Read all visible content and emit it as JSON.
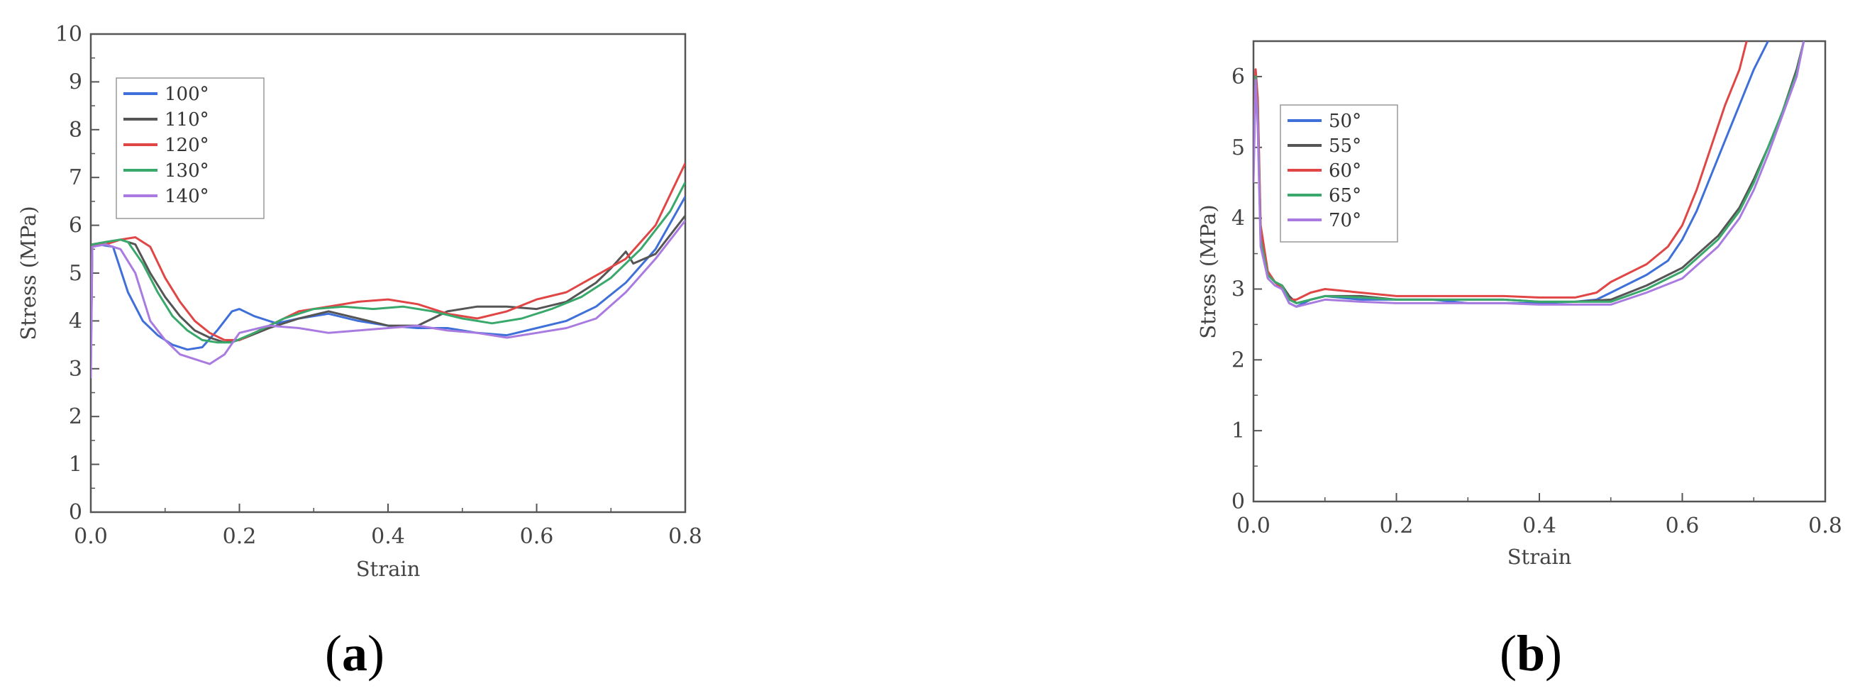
{
  "chart_data": [
    {
      "type": "line",
      "panel_label": "(a)",
      "xlabel": "Strain",
      "ylabel": "Stress (MPa)",
      "xlim": [
        0,
        0.8
      ],
      "ylim": [
        0,
        10
      ],
      "xticks": [
        "0.0",
        "0.2",
        "0.4",
        "0.6",
        "0.8"
      ],
      "yticks": [
        "0",
        "1",
        "2",
        "3",
        "4",
        "5",
        "6",
        "7",
        "8",
        "9",
        "10"
      ],
      "grid": false,
      "legend_position": "upper-left",
      "series": [
        {
          "name": "100°",
          "color": "#3f6fd8",
          "x": [
            0,
            0.002,
            0.01,
            0.03,
            0.05,
            0.07,
            0.09,
            0.11,
            0.13,
            0.15,
            0.17,
            0.19,
            0.2,
            0.22,
            0.25,
            0.28,
            0.32,
            0.36,
            0.4,
            0.44,
            0.48,
            0.52,
            0.56,
            0.6,
            0.64,
            0.68,
            0.72,
            0.76,
            0.8
          ],
          "y": [
            3.2,
            5.6,
            5.6,
            5.55,
            4.6,
            4.0,
            3.7,
            3.5,
            3.4,
            3.45,
            3.8,
            4.2,
            4.25,
            4.1,
            3.95,
            4.05,
            4.15,
            4.0,
            3.9,
            3.85,
            3.85,
            3.75,
            3.7,
            3.85,
            4.0,
            4.3,
            4.8,
            5.5,
            6.6
          ]
        },
        {
          "name": "110°",
          "color": "#555555",
          "x": [
            0,
            0.002,
            0.02,
            0.04,
            0.06,
            0.08,
            0.1,
            0.12,
            0.14,
            0.16,
            0.18,
            0.2,
            0.24,
            0.28,
            0.32,
            0.36,
            0.4,
            0.44,
            0.48,
            0.52,
            0.56,
            0.6,
            0.64,
            0.68,
            0.7,
            0.72,
            0.73,
            0.76,
            0.8
          ],
          "y": [
            3.5,
            5.6,
            5.65,
            5.7,
            5.6,
            5.0,
            4.5,
            4.1,
            3.8,
            3.65,
            3.55,
            3.6,
            3.85,
            4.05,
            4.2,
            4.05,
            3.9,
            3.9,
            4.2,
            4.3,
            4.3,
            4.25,
            4.4,
            4.8,
            5.1,
            5.45,
            5.2,
            5.4,
            6.2
          ]
        },
        {
          "name": "120°",
          "color": "#e04646",
          "x": [
            0,
            0.002,
            0.02,
            0.04,
            0.06,
            0.08,
            0.1,
            0.12,
            0.14,
            0.16,
            0.18,
            0.2,
            0.24,
            0.28,
            0.32,
            0.36,
            0.4,
            0.44,
            0.48,
            0.52,
            0.56,
            0.6,
            0.64,
            0.68,
            0.72,
            0.76,
            0.8
          ],
          "y": [
            3.5,
            5.6,
            5.6,
            5.7,
            5.75,
            5.55,
            4.9,
            4.4,
            4.0,
            3.75,
            3.6,
            3.6,
            3.9,
            4.2,
            4.3,
            4.4,
            4.45,
            4.35,
            4.15,
            4.05,
            4.2,
            4.45,
            4.6,
            4.95,
            5.3,
            6.0,
            7.3
          ]
        },
        {
          "name": "130°",
          "color": "#39a86b",
          "x": [
            0,
            0.002,
            0.02,
            0.04,
            0.05,
            0.07,
            0.09,
            0.11,
            0.13,
            0.15,
            0.17,
            0.19,
            0.22,
            0.26,
            0.3,
            0.34,
            0.38,
            0.42,
            0.46,
            0.5,
            0.54,
            0.58,
            0.62,
            0.66,
            0.7,
            0.74,
            0.78,
            0.8
          ],
          "y": [
            3.0,
            5.6,
            5.65,
            5.7,
            5.65,
            5.2,
            4.6,
            4.1,
            3.8,
            3.6,
            3.55,
            3.55,
            3.75,
            4.05,
            4.25,
            4.3,
            4.25,
            4.3,
            4.2,
            4.05,
            3.95,
            4.05,
            4.25,
            4.5,
            4.9,
            5.5,
            6.3,
            6.9
          ]
        },
        {
          "name": "140°",
          "color": "#a97be0",
          "x": [
            0,
            0.002,
            0.02,
            0.04,
            0.06,
            0.08,
            0.1,
            0.12,
            0.14,
            0.16,
            0.18,
            0.2,
            0.24,
            0.28,
            0.32,
            0.36,
            0.4,
            0.44,
            0.48,
            0.52,
            0.56,
            0.6,
            0.64,
            0.68,
            0.72,
            0.76,
            0.8
          ],
          "y": [
            2.8,
            5.55,
            5.6,
            5.5,
            5.0,
            4.0,
            3.6,
            3.3,
            3.2,
            3.1,
            3.3,
            3.75,
            3.9,
            3.85,
            3.75,
            3.8,
            3.85,
            3.9,
            3.8,
            3.75,
            3.65,
            3.75,
            3.85,
            4.05,
            4.6,
            5.3,
            6.1
          ]
        }
      ]
    },
    {
      "type": "line",
      "panel_label": "(b)",
      "xlabel": "Strain",
      "ylabel": "Stress (MPa)",
      "xlim": [
        0,
        0.8
      ],
      "ylim": [
        0,
        6.5
      ],
      "xticks": [
        "0.0",
        "0.2",
        "0.4",
        "0.6",
        "0.8"
      ],
      "yticks": [
        "0",
        "1",
        "2",
        "3",
        "4",
        "5",
        "6"
      ],
      "grid": false,
      "legend_position": "upper-left",
      "series": [
        {
          "name": "50°",
          "color": "#3f6fd8",
          "x": [
            0,
            0.003,
            0.006,
            0.01,
            0.02,
            0.03,
            0.04,
            0.05,
            0.06,
            0.08,
            0.1,
            0.15,
            0.2,
            0.25,
            0.3,
            0.35,
            0.4,
            0.45,
            0.48,
            0.5,
            0.52,
            0.55,
            0.58,
            0.6,
            0.62,
            0.64,
            0.66,
            0.68,
            0.7,
            0.72
          ],
          "y": [
            4.8,
            6.1,
            5.6,
            3.8,
            3.2,
            3.1,
            3.0,
            2.8,
            2.75,
            2.85,
            2.9,
            2.85,
            2.85,
            2.85,
            2.8,
            2.8,
            2.8,
            2.82,
            2.85,
            2.95,
            3.05,
            3.2,
            3.4,
            3.7,
            4.1,
            4.6,
            5.1,
            5.6,
            6.1,
            6.5
          ]
        },
        {
          "name": "55°",
          "color": "#555555",
          "x": [
            0,
            0.003,
            0.006,
            0.01,
            0.02,
            0.03,
            0.04,
            0.05,
            0.06,
            0.08,
            0.1,
            0.15,
            0.2,
            0.25,
            0.3,
            0.35,
            0.4,
            0.45,
            0.5,
            0.55,
            0.6,
            0.65,
            0.68,
            0.7,
            0.72,
            0.74,
            0.76,
            0.77
          ],
          "y": [
            4.7,
            6.05,
            5.5,
            3.7,
            3.2,
            3.1,
            3.05,
            2.9,
            2.8,
            2.85,
            2.9,
            2.9,
            2.85,
            2.85,
            2.85,
            2.85,
            2.82,
            2.82,
            2.85,
            3.05,
            3.3,
            3.75,
            4.15,
            4.55,
            5.0,
            5.5,
            6.1,
            6.5
          ]
        },
        {
          "name": "60°",
          "color": "#e04646",
          "x": [
            0,
            0.003,
            0.006,
            0.01,
            0.02,
            0.03,
            0.04,
            0.05,
            0.06,
            0.08,
            0.1,
            0.15,
            0.2,
            0.25,
            0.3,
            0.35,
            0.4,
            0.45,
            0.48,
            0.5,
            0.52,
            0.55,
            0.58,
            0.6,
            0.62,
            0.64,
            0.66,
            0.68,
            0.69
          ],
          "y": [
            4.9,
            6.1,
            5.7,
            3.9,
            3.25,
            3.1,
            3.0,
            2.85,
            2.85,
            2.95,
            3.0,
            2.95,
            2.9,
            2.9,
            2.9,
            2.9,
            2.88,
            2.88,
            2.95,
            3.1,
            3.2,
            3.35,
            3.6,
            3.9,
            4.4,
            5.0,
            5.6,
            6.1,
            6.5
          ]
        },
        {
          "name": "65°",
          "color": "#39a86b",
          "x": [
            0,
            0.003,
            0.006,
            0.01,
            0.02,
            0.03,
            0.04,
            0.05,
            0.06,
            0.08,
            0.1,
            0.15,
            0.2,
            0.25,
            0.3,
            0.35,
            0.4,
            0.45,
            0.5,
            0.55,
            0.6,
            0.65,
            0.68,
            0.7,
            0.72,
            0.74,
            0.76,
            0.77
          ],
          "y": [
            4.6,
            6.0,
            5.4,
            3.7,
            3.2,
            3.1,
            3.05,
            2.85,
            2.8,
            2.85,
            2.9,
            2.88,
            2.85,
            2.85,
            2.85,
            2.85,
            2.82,
            2.82,
            2.82,
            3.0,
            3.25,
            3.7,
            4.1,
            4.5,
            5.0,
            5.5,
            6.05,
            6.5
          ]
        },
        {
          "name": "70°",
          "color": "#a97be0",
          "x": [
            0,
            0.003,
            0.006,
            0.01,
            0.02,
            0.03,
            0.04,
            0.05,
            0.06,
            0.08,
            0.1,
            0.15,
            0.2,
            0.25,
            0.3,
            0.35,
            0.4,
            0.45,
            0.5,
            0.55,
            0.6,
            0.65,
            0.68,
            0.7,
            0.72,
            0.74,
            0.76,
            0.77
          ],
          "y": [
            4.5,
            5.95,
            5.3,
            3.6,
            3.15,
            3.05,
            3.0,
            2.8,
            2.75,
            2.8,
            2.85,
            2.82,
            2.8,
            2.8,
            2.8,
            2.8,
            2.78,
            2.78,
            2.78,
            2.95,
            3.15,
            3.6,
            4.0,
            4.4,
            4.9,
            5.45,
            6.0,
            6.5
          ]
        }
      ]
    }
  ]
}
